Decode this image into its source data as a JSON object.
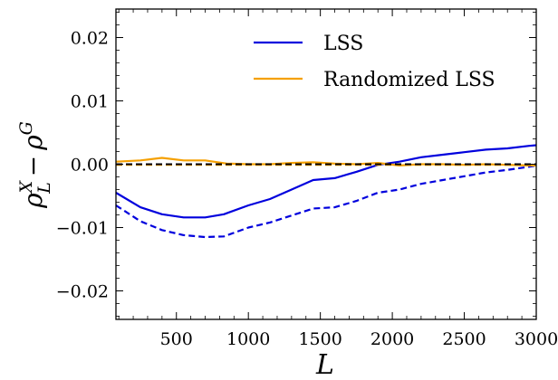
{
  "chart_data": {
    "type": "line",
    "xlabel": "L",
    "ylabel": {
      "base": "ρ",
      "sup1": "X",
      "sub1": "L",
      "minus": "−",
      "sup2": "G"
    },
    "xlim": [
      80,
      3000
    ],
    "ylim": [
      -0.0245,
      0.0245
    ],
    "x_ticks": [
      500,
      1000,
      1500,
      2000,
      2500,
      3000
    ],
    "x_tick_labels": [
      "500",
      "1000",
      "1500",
      "2000",
      "2500",
      "3000"
    ],
    "y_ticks": [
      0.02,
      0.01,
      0.0,
      -0.01,
      -0.02
    ],
    "y_tick_labels": [
      "0.02",
      "0.01",
      "0.00",
      "−0.01",
      "−0.02"
    ],
    "legend_position": "top-right",
    "legend": [
      {
        "label": "LSS",
        "color": "#0000dd"
      },
      {
        "label": "Randomized LSS",
        "color": "#f5a000"
      }
    ],
    "series": [
      {
        "name": "LSS",
        "color": "#0000dd",
        "dash": "solid",
        "x": [
          80,
          250,
          400,
          550,
          700,
          830,
          1000,
          1150,
          1300,
          1450,
          1600,
          1750,
          1900,
          2050,
          2200,
          2350,
          2500,
          2650,
          2800,
          2950,
          3000
        ],
        "y": [
          -0.0045,
          -0.0068,
          -0.0079,
          -0.0084,
          -0.0084,
          -0.0079,
          -0.0065,
          -0.0055,
          -0.004,
          -0.0025,
          -0.0022,
          -0.0012,
          -0.0001,
          0.0004,
          0.0011,
          0.0015,
          0.0019,
          0.0023,
          0.0025,
          0.0029,
          0.003
        ]
      },
      {
        "name": "LSS (dashed)",
        "color": "#0000dd",
        "dash": "dashed",
        "x": [
          80,
          250,
          400,
          550,
          700,
          830,
          1000,
          1150,
          1300,
          1450,
          1600,
          1750,
          1900,
          2050,
          2200,
          2350,
          2500,
          2650,
          2800,
          2950,
          3000
        ],
        "y": [
          -0.0065,
          -0.009,
          -0.0104,
          -0.0112,
          -0.0115,
          -0.0114,
          -0.01,
          -0.0092,
          -0.0081,
          -0.007,
          -0.0068,
          -0.0058,
          -0.0045,
          -0.004,
          -0.0031,
          -0.0025,
          -0.0019,
          -0.0013,
          -0.0009,
          -0.0004,
          -0.0002
        ]
      },
      {
        "name": "Randomized LSS",
        "color": "#f5a000",
        "dash": "solid",
        "x": [
          80,
          250,
          400,
          550,
          700,
          850,
          1000,
          1150,
          1300,
          1450,
          1600,
          1750,
          1900,
          2050,
          2200,
          2350,
          2500,
          2650,
          2800,
          2950,
          3000
        ],
        "y": [
          0.0004,
          0.0006,
          0.001,
          0.0006,
          0.0006,
          0.0001,
          0.0,
          0.0,
          0.0002,
          0.0003,
          0.0001,
          0.0,
          0.0002,
          -0.0002,
          0.0,
          0.0,
          -0.0001,
          0.0,
          -0.0001,
          -0.0002,
          -0.0002
        ]
      },
      {
        "name": "Randomized LSS (dashed)",
        "color": "#f5a000",
        "dash": "dashed",
        "x": [
          80,
          500,
          1000,
          1500,
          2000,
          2500,
          3000
        ],
        "y": [
          -0.0001,
          -0.0001,
          -0.0001,
          -0.0001,
          -0.0001,
          -0.0001,
          -0.0001
        ]
      },
      {
        "name": "Zero reference",
        "color": "#000000",
        "dash": "dashed",
        "x": [
          80,
          3000
        ],
        "y": [
          0.0,
          0.0
        ]
      }
    ]
  }
}
